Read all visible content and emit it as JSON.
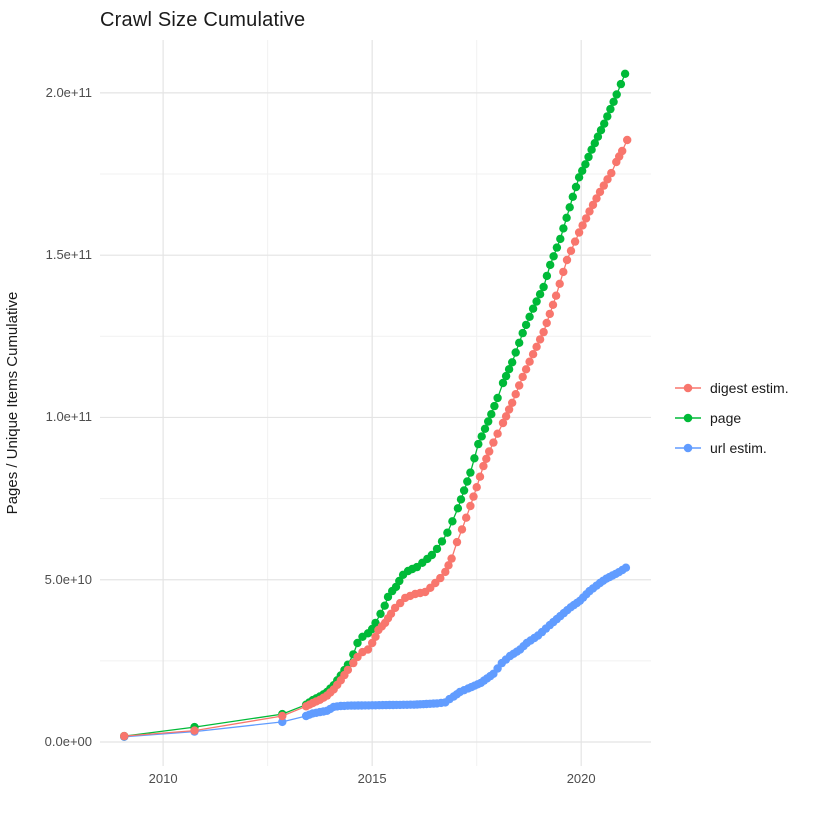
{
  "title": "Crawl Size Cumulative",
  "axes": {
    "y_label": "Pages / Unique Items Cumulative",
    "y_ticks": [
      {
        "label": "0.0e+00",
        "value_e9": 0
      },
      {
        "label": "5.0e+10",
        "value_e9": 50
      },
      {
        "label": "1.0e+11",
        "value_e9": 100
      },
      {
        "label": "1.5e+11",
        "value_e9": 150
      },
      {
        "label": "2.0e+11",
        "value_e9": 200
      }
    ],
    "y_minor_e9": [
      25,
      75,
      125,
      175
    ],
    "x_ticks": [
      {
        "label": "2010",
        "value": 2010
      },
      {
        "label": "2015",
        "value": 2015
      },
      {
        "label": "2020",
        "value": 2020
      }
    ],
    "x_minor": [
      2012.5,
      2017.5
    ]
  },
  "legend": {
    "items": [
      {
        "label": "digest estim.",
        "color": "#F8766D"
      },
      {
        "label": "page",
        "color": "#00BA38"
      },
      {
        "label": "url estim.",
        "color": "#619CFF"
      }
    ]
  },
  "style": {
    "grid_major": "#E4E4E4",
    "grid_minor": "#F1F1F1",
    "tick_text": "#4D4D4D",
    "background": "#FFFFFF"
  },
  "chart_data": {
    "type": "line",
    "markers": true,
    "title": "Crawl Size Cumulative",
    "xlabel": "",
    "ylabel": "Pages / Unique Items Cumulative",
    "unit": "cumulative count, values listed in billions (1e9)",
    "xlim": [
      2008.49,
      2021.67
    ],
    "ylim_e9": [
      -7.4,
      216.3
    ],
    "grid": true,
    "legend_position": "right",
    "point_interval_years": 0.0833,
    "dense_from_year": 2013.3,
    "series": [
      {
        "name": "url estim.",
        "color": "#619CFF",
        "points_year_billions": [
          [
            2009.07,
            1.6
          ],
          [
            2010.75,
            3.2
          ],
          [
            2012.85,
            6.2
          ],
          [
            2013.42,
            8.0
          ],
          [
            2013.58,
            8.8
          ],
          [
            2013.75,
            9.2
          ],
          [
            2013.92,
            9.6
          ],
          [
            2014.08,
            10.8
          ],
          [
            2014.25,
            11.1
          ],
          [
            2014.5,
            11.2
          ],
          [
            2015.0,
            11.3
          ],
          [
            2015.5,
            11.4
          ],
          [
            2016.0,
            11.5
          ],
          [
            2016.3,
            11.7
          ],
          [
            2016.55,
            11.9
          ],
          [
            2016.75,
            12.2
          ],
          [
            2016.85,
            13.2
          ],
          [
            2016.95,
            14.0
          ],
          [
            2017.1,
            15.4
          ],
          [
            2017.3,
            16.5
          ],
          [
            2017.6,
            18.2
          ],
          [
            2017.9,
            21.0
          ],
          [
            2018.1,
            24.3
          ],
          [
            2018.3,
            26.5
          ],
          [
            2018.54,
            28.5
          ],
          [
            2018.7,
            30.5
          ],
          [
            2018.97,
            32.8
          ],
          [
            2019.25,
            36.0
          ],
          [
            2019.5,
            38.8
          ],
          [
            2019.75,
            41.5
          ],
          [
            2019.97,
            43.5
          ],
          [
            2020.2,
            46.5
          ],
          [
            2020.45,
            49.0
          ],
          [
            2020.6,
            50.3
          ],
          [
            2020.75,
            51.3
          ],
          [
            2020.9,
            52.3
          ],
          [
            2021.07,
            53.7
          ]
        ]
      },
      {
        "name": "page",
        "color": "#00BA38",
        "points_year_billions": [
          [
            2009.07,
            1.8
          ],
          [
            2010.75,
            4.6
          ],
          [
            2012.85,
            8.6
          ],
          [
            2013.42,
            11.5
          ],
          [
            2013.58,
            12.9
          ],
          [
            2013.75,
            14.0
          ],
          [
            2013.92,
            15.4
          ],
          [
            2014.08,
            17.5
          ],
          [
            2014.25,
            20.5
          ],
          [
            2014.42,
            23.8
          ],
          [
            2014.55,
            27.0
          ],
          [
            2014.65,
            30.5
          ],
          [
            2014.77,
            32.4
          ],
          [
            2014.9,
            33.5
          ],
          [
            2015.0,
            34.8
          ],
          [
            2015.08,
            36.7
          ],
          [
            2015.2,
            39.5
          ],
          [
            2015.3,
            42.0
          ],
          [
            2015.38,
            44.7
          ],
          [
            2015.48,
            46.5
          ],
          [
            2015.57,
            47.8
          ],
          [
            2015.65,
            49.6
          ],
          [
            2015.74,
            51.5
          ],
          [
            2015.86,
            52.7
          ],
          [
            2015.96,
            53.3
          ],
          [
            2016.07,
            53.9
          ],
          [
            2016.2,
            55.2
          ],
          [
            2016.32,
            56.4
          ],
          [
            2016.43,
            57.6
          ],
          [
            2016.55,
            59.5
          ],
          [
            2016.67,
            61.8
          ],
          [
            2016.8,
            64.5
          ],
          [
            2016.92,
            68.0
          ],
          [
            2017.05,
            72.0
          ],
          [
            2017.2,
            77.5
          ],
          [
            2017.35,
            83.0
          ],
          [
            2017.54,
            91.8
          ],
          [
            2017.7,
            96.5
          ],
          [
            2017.85,
            101.0
          ],
          [
            2018.0,
            106.0
          ],
          [
            2018.13,
            110.6
          ],
          [
            2018.35,
            117.0
          ],
          [
            2018.6,
            126.0
          ],
          [
            2018.85,
            133.5
          ],
          [
            2019.1,
            140.2
          ],
          [
            2019.26,
            147.0
          ],
          [
            2019.5,
            155.0
          ],
          [
            2019.8,
            168.0
          ],
          [
            2019.95,
            174.0
          ],
          [
            2020.1,
            178.0
          ],
          [
            2020.25,
            182.5
          ],
          [
            2020.4,
            186.5
          ],
          [
            2020.55,
            190.5
          ],
          [
            2020.7,
            195.0
          ],
          [
            2020.85,
            199.5
          ],
          [
            2021.05,
            205.9
          ]
        ]
      },
      {
        "name": "digest estim.",
        "color": "#F8766D",
        "points_year_billions": [
          [
            2009.07,
            1.8
          ],
          [
            2010.75,
            3.5
          ],
          [
            2012.85,
            8.0
          ],
          [
            2013.42,
            11.0
          ],
          [
            2013.58,
            12.0
          ],
          [
            2013.75,
            13.0
          ],
          [
            2013.92,
            14.3
          ],
          [
            2014.08,
            16.2
          ],
          [
            2014.25,
            19.0
          ],
          [
            2014.42,
            22.2
          ],
          [
            2014.55,
            24.3
          ],
          [
            2014.65,
            26.2
          ],
          [
            2014.77,
            27.7
          ],
          [
            2014.9,
            28.5
          ],
          [
            2015.0,
            30.5
          ],
          [
            2015.08,
            32.4
          ],
          [
            2015.15,
            34.5
          ],
          [
            2015.31,
            36.7
          ],
          [
            2015.45,
            39.5
          ],
          [
            2015.55,
            41.3
          ],
          [
            2015.67,
            42.8
          ],
          [
            2015.79,
            44.4
          ],
          [
            2015.91,
            45.0
          ],
          [
            2016.03,
            45.6
          ],
          [
            2016.15,
            45.9
          ],
          [
            2016.27,
            46.2
          ],
          [
            2016.39,
            47.5
          ],
          [
            2016.51,
            49.0
          ],
          [
            2016.63,
            50.5
          ],
          [
            2016.75,
            52.4
          ],
          [
            2016.9,
            56.5
          ],
          [
            2017.03,
            61.6
          ],
          [
            2017.15,
            65.5
          ],
          [
            2017.35,
            72.7
          ],
          [
            2017.5,
            78.5
          ],
          [
            2017.66,
            85.0
          ],
          [
            2017.8,
            89.5
          ],
          [
            2018.0,
            95.0
          ],
          [
            2018.13,
            98.3
          ],
          [
            2018.35,
            104.5
          ],
          [
            2018.6,
            112.5
          ],
          [
            2018.85,
            119.5
          ],
          [
            2019.1,
            126.3
          ],
          [
            2019.4,
            137.5
          ],
          [
            2019.66,
            148.5
          ],
          [
            2019.95,
            157.0
          ],
          [
            2020.2,
            163.5
          ],
          [
            2020.45,
            169.5
          ],
          [
            2020.72,
            175.3
          ],
          [
            2020.84,
            178.7
          ],
          [
            2020.98,
            182.1
          ],
          [
            2021.1,
            185.5
          ]
        ]
      }
    ]
  }
}
